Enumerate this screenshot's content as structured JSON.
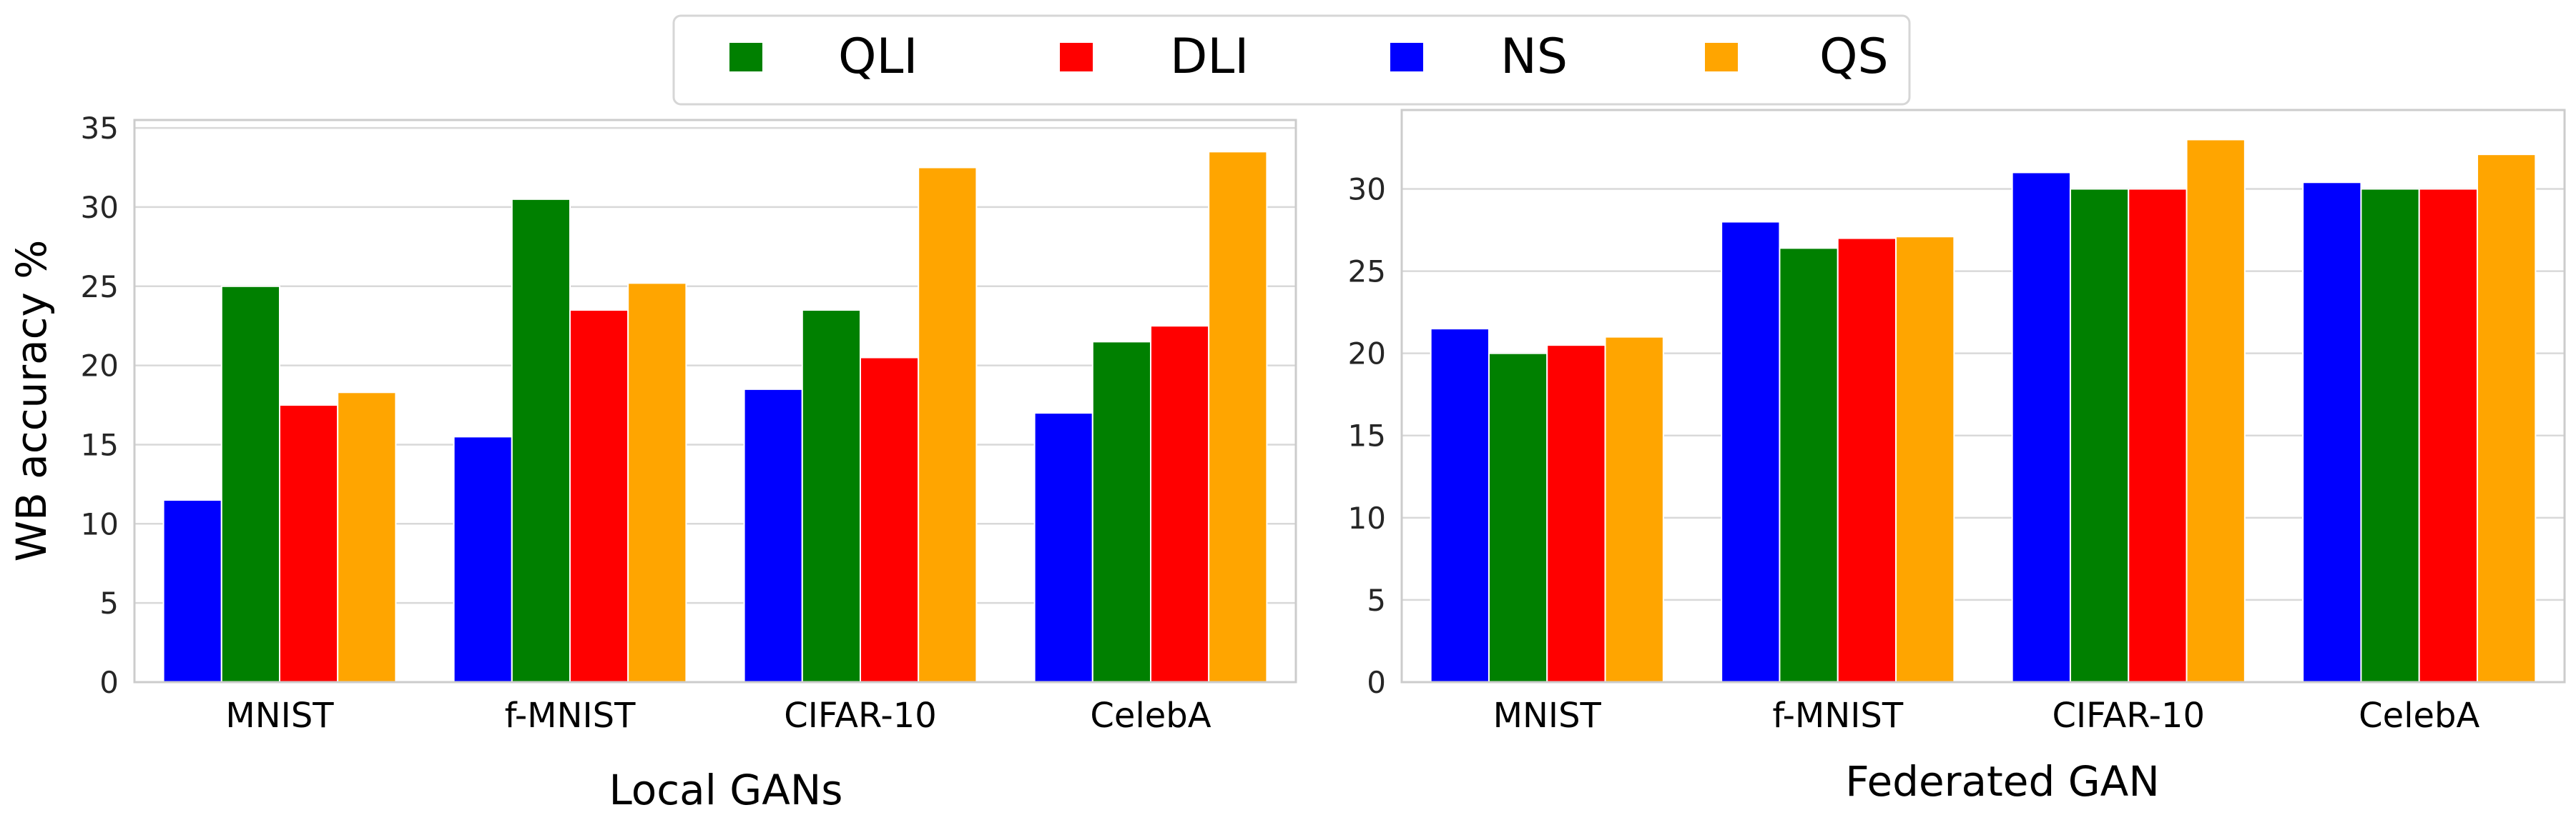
{
  "legend": {
    "items": [
      {
        "label": "QLI",
        "color": "#008000"
      },
      {
        "label": "DLI",
        "color": "#ff0000"
      },
      {
        "label": "NS",
        "color": "#0000ff"
      },
      {
        "label": "QS",
        "color": "#ffa500"
      }
    ]
  },
  "chart_data": [
    {
      "type": "bar",
      "title": "",
      "xlabel": "Local GANs",
      "ylabel": "WB accuracy %",
      "categories": [
        "MNIST",
        "f-MNIST",
        "CIFAR-10",
        "CelebA"
      ],
      "ylim": [
        0,
        35.5
      ],
      "yticks": [
        0,
        5,
        10,
        15,
        20,
        25,
        30,
        35
      ],
      "grid": true,
      "series": [
        {
          "name": "NS",
          "color": "#0000ff",
          "values": [
            11.5,
            15.5,
            18.5,
            17.0
          ]
        },
        {
          "name": "QLI",
          "color": "#008000",
          "values": [
            25.0,
            30.5,
            23.5,
            21.5
          ]
        },
        {
          "name": "DLI",
          "color": "#ff0000",
          "values": [
            17.5,
            23.5,
            20.5,
            22.5
          ]
        },
        {
          "name": "QS",
          "color": "#ffa500",
          "values": [
            18.3,
            25.2,
            32.5,
            33.5
          ]
        }
      ]
    },
    {
      "type": "bar",
      "title": "",
      "xlabel": "Federated GAN",
      "ylabel": "",
      "categories": [
        "MNIST",
        "f-MNIST",
        "CIFAR-10",
        "CelebA"
      ],
      "ylim": [
        0,
        34.8
      ],
      "yticks": [
        0,
        5,
        10,
        15,
        20,
        25,
        30
      ],
      "grid": true,
      "series": [
        {
          "name": "NS",
          "color": "#0000ff",
          "values": [
            21.5,
            28.0,
            31.0,
            30.4
          ]
        },
        {
          "name": "QLI",
          "color": "#008000",
          "values": [
            20.0,
            26.4,
            30.0,
            30.0
          ]
        },
        {
          "name": "DLI",
          "color": "#ff0000",
          "values": [
            20.5,
            27.0,
            30.0,
            30.0
          ]
        },
        {
          "name": "QS",
          "color": "#ffa500",
          "values": [
            21.0,
            27.1,
            33.0,
            32.1
          ]
        }
      ]
    }
  ]
}
